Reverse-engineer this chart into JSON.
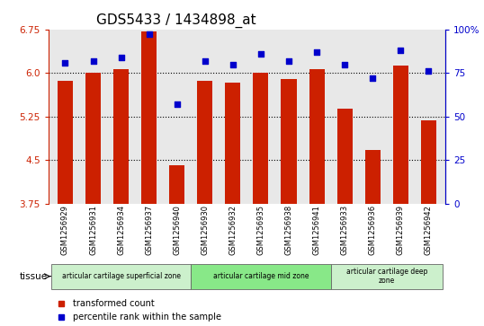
{
  "title": "GDS5433 / 1434898_at",
  "samples": [
    "GSM1256929",
    "GSM1256931",
    "GSM1256934",
    "GSM1256937",
    "GSM1256940",
    "GSM1256930",
    "GSM1256932",
    "GSM1256935",
    "GSM1256938",
    "GSM1256941",
    "GSM1256933",
    "GSM1256936",
    "GSM1256939",
    "GSM1256942"
  ],
  "bar_values": [
    5.87,
    6.0,
    6.07,
    6.72,
    4.42,
    5.87,
    5.83,
    6.0,
    5.9,
    6.07,
    5.38,
    4.68,
    6.12,
    5.18
  ],
  "percentile_values": [
    81,
    82,
    84,
    97,
    57,
    82,
    80,
    86,
    82,
    87,
    80,
    72,
    88,
    76
  ],
  "ylim_left": [
    3.75,
    6.75
  ],
  "ylim_right": [
    0,
    100
  ],
  "yticks_left": [
    3.75,
    4.5,
    5.25,
    6.0,
    6.75
  ],
  "yticks_right": [
    0,
    25,
    50,
    75,
    100
  ],
  "ytick_labels_right": [
    "0",
    "25",
    "50",
    "75",
    "100%"
  ],
  "bar_color": "#cc2000",
  "percentile_color": "#0000cc",
  "bg_color": "#e8e8e8",
  "tissue_groups": [
    {
      "label": "articular cartilage superficial zone",
      "indices": [
        0,
        1,
        2,
        3,
        4
      ],
      "color": "#ccf0cc"
    },
    {
      "label": "articular cartilage mid zone",
      "indices": [
        5,
        6,
        7,
        8,
        9
      ],
      "color": "#88e888"
    },
    {
      "label": "articular cartilage deep\nzone",
      "indices": [
        10,
        11,
        12,
        13
      ],
      "color": "#ccf0cc"
    }
  ],
  "tissue_label": "tissue",
  "legend_bar_label": "transformed count",
  "legend_pct_label": "percentile rank within the sample",
  "title_fontsize": 11,
  "tick_fontsize": 7.5,
  "sample_fontsize": 6
}
